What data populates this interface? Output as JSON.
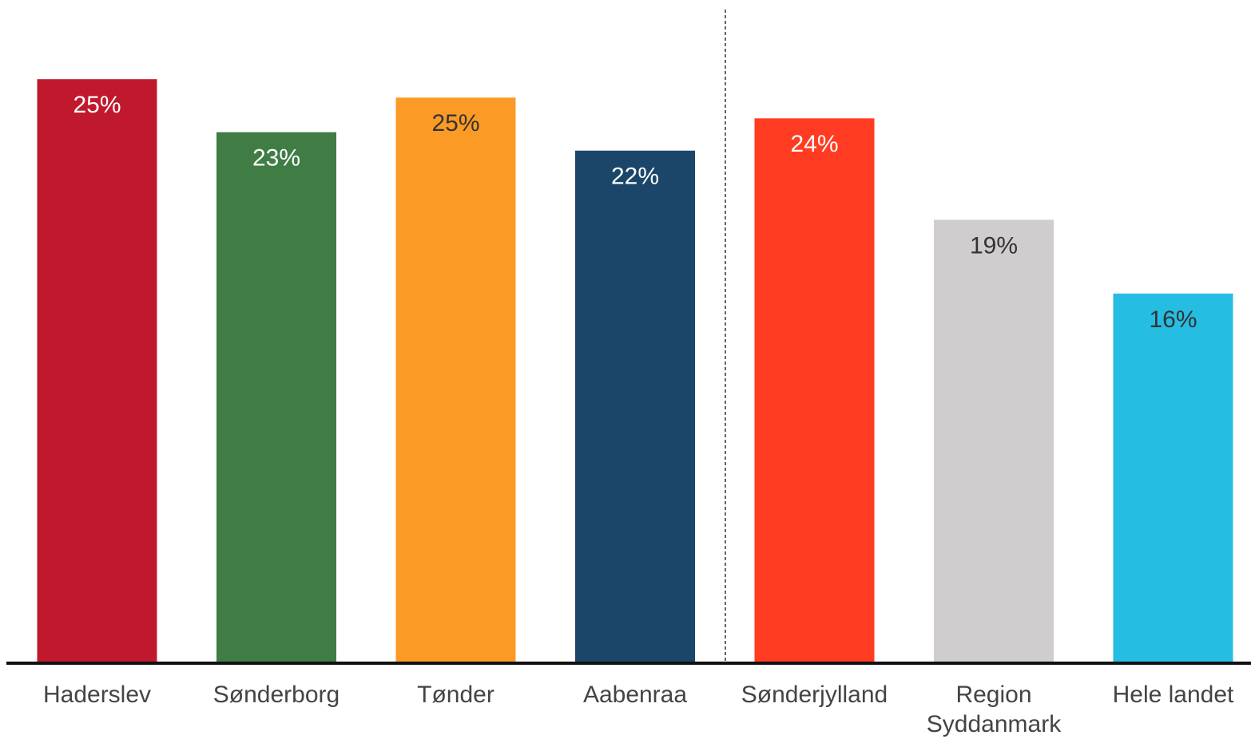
{
  "chart_data": {
    "type": "bar",
    "categories": [
      "Haderslev",
      "Sønderborg",
      "Tønder",
      "Aabenraa",
      "Sønderjylland",
      "Region Syddanmark",
      "Hele landet"
    ],
    "values": [
      25.3,
      23.0,
      24.5,
      22.2,
      23.6,
      19.2,
      16.0
    ],
    "value_labels": [
      "25%",
      "23%",
      "25%",
      "22%",
      "24%",
      "19%",
      "16%"
    ],
    "colors": [
      "#c0192d",
      "#3f7d45",
      "#fb9b25",
      "#1b4669",
      "#ff3b21",
      "#cfcdce",
      "#25bde2"
    ],
    "label_colors": [
      "#ffffff",
      "#ffffff",
      "#333333",
      "#ffffff",
      "#ffffff",
      "#333333",
      "#333333"
    ],
    "ylim": [
      0,
      28.7
    ]
  }
}
